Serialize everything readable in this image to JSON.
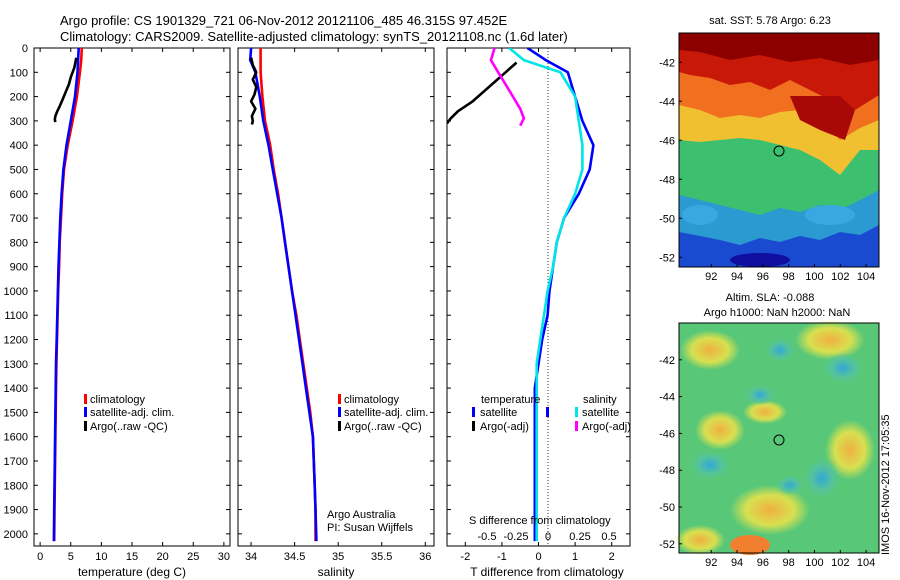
{
  "title_line1": "Argo profile: CS 1901329_721 06-Nov-2012 20121106_485 46.315S 97.452E",
  "title_line2": "Climatology: CARS2009. Satellite-adjusted climatology: synTS_20121108.nc (1.6d later)",
  "timestamp": "IMOS 16-Nov-2012 17:05:35",
  "colors": {
    "climatology": "#ff0000",
    "satellite": "#0000ff",
    "argo": "#000000",
    "sat_sal": "#00e5e5",
    "argo_sal": "#ff00ff"
  },
  "panels": {
    "temperature": {
      "xlabel": "temperature (deg C)"
    },
    "salinity": {
      "xlabel": "salinity",
      "note1": "Argo Australia",
      "note2": "PI: Susan Wijffels"
    },
    "difference": {
      "top_label": "S difference from climatology",
      "xlabel": "T difference from climatology",
      "leg_temp_head": "temperature",
      "leg_sal_head": "salinity",
      "leg_sat": "satellite",
      "leg_argo": "Argo(-adj)",
      "leg_sat2": "satellite",
      "leg_argo2": "Argo(-adj)"
    },
    "sst_map": {
      "title": "sat. SST: 5.78 Argo: 6.23"
    },
    "sla_map": {
      "title1": "Altim. SLA: -0.088",
      "title2": "Argo h1000: NaN h2000: NaN"
    }
  },
  "legend": {
    "climatology": "climatology",
    "satellite": "satellite-adj. clim.",
    "argo": "Argo(..raw -QC)"
  },
  "chart_data": [
    {
      "type": "line",
      "xlabel": "temperature (deg C)",
      "ylabel": "",
      "xlim": [
        -1,
        31
      ],
      "ylim": [
        2050,
        0
      ],
      "xticks": [
        0,
        5,
        10,
        15,
        20,
        25,
        30
      ],
      "yticks": [
        0,
        100,
        200,
        300,
        400,
        500,
        600,
        700,
        800,
        900,
        1000,
        1100,
        1200,
        1300,
        1400,
        1500,
        1600,
        1700,
        1800,
        1900,
        2000
      ],
      "series": [
        {
          "name": "climatology",
          "x": [
            6.8,
            6.7,
            6.5,
            6.0,
            5.3,
            4.5,
            3.9,
            3.6,
            3.4,
            3.2,
            3.1,
            2.95,
            2.85,
            2.75,
            2.65,
            2.6,
            2.55,
            2.5,
            2.45,
            2.4,
            2.35,
            2.3
          ],
          "y": [
            0,
            50,
            100,
            200,
            300,
            400,
            500,
            600,
            700,
            800,
            900,
            1000,
            1100,
            1200,
            1300,
            1400,
            1500,
            1600,
            1700,
            1800,
            1900,
            2030
          ]
        },
        {
          "name": "satellite-adj. clim.",
          "x": [
            6.3,
            6.2,
            6.1,
            5.7,
            5.0,
            4.3,
            3.8,
            3.5,
            3.3,
            3.15,
            3.0,
            2.9,
            2.8,
            2.7,
            2.6,
            2.55,
            2.5,
            2.45,
            2.4,
            2.35,
            2.3,
            2.25
          ],
          "y": [
            0,
            50,
            100,
            200,
            300,
            400,
            500,
            600,
            700,
            800,
            900,
            1000,
            1100,
            1200,
            1300,
            1400,
            1500,
            1600,
            1700,
            1800,
            1900,
            2030
          ]
        },
        {
          "name": "Argo(..raw -QC)",
          "x": [
            5.9,
            5.6,
            5.0,
            4.7,
            4.2,
            3.7,
            3.2,
            2.8,
            2.5,
            2.4,
            2.5
          ],
          "y": [
            40,
            80,
            120,
            150,
            180,
            210,
            240,
            260,
            280,
            295,
            305
          ]
        }
      ]
    },
    {
      "type": "line",
      "xlabel": "salinity",
      "ylabel": "",
      "xlim": [
        33.85,
        36.1
      ],
      "ylim": [
        2050,
        0
      ],
      "xticks": [
        34,
        34.5,
        35,
        35.5,
        36
      ],
      "series": [
        {
          "name": "climatology",
          "x": [
            34.11,
            34.11,
            34.11,
            34.13,
            34.16,
            34.22,
            34.26,
            34.31,
            34.35,
            34.39,
            34.43,
            34.47,
            34.52,
            34.56,
            34.6,
            34.64,
            34.68,
            34.71,
            34.72,
            34.73,
            34.74,
            34.74
          ],
          "y": [
            0,
            50,
            100,
            200,
            300,
            400,
            500,
            600,
            700,
            800,
            900,
            1000,
            1100,
            1200,
            1300,
            1400,
            1500,
            1600,
            1700,
            1800,
            1900,
            2030
          ]
        },
        {
          "name": "satellite-adj. clim.",
          "x": [
            34.0,
            33.99,
            34.05,
            34.1,
            34.14,
            34.2,
            34.25,
            34.3,
            34.35,
            34.39,
            34.43,
            34.47,
            34.51,
            34.55,
            34.59,
            34.63,
            34.67,
            34.71,
            34.72,
            34.73,
            34.74,
            34.75
          ],
          "y": [
            0,
            50,
            100,
            200,
            300,
            400,
            500,
            600,
            700,
            800,
            900,
            1000,
            1100,
            1200,
            1300,
            1400,
            1500,
            1600,
            1700,
            1800,
            1900,
            2030
          ]
        },
        {
          "name": "Argo(..raw -QC)",
          "x": [
            34.0,
            34.02,
            34.06,
            34.02,
            34.06,
            34.04,
            34.0,
            34.05,
            34.01,
            34.02,
            34.01
          ],
          "y": [
            40,
            70,
            100,
            130,
            160,
            190,
            220,
            250,
            280,
            300,
            315
          ]
        }
      ]
    },
    {
      "type": "line",
      "xlabel": "T difference from climatology",
      "ylabel": "",
      "xlim": [
        -2.5,
        2.5
      ],
      "ylim": [
        2050,
        0
      ],
      "xticks": [
        -2,
        -1,
        0,
        1,
        2
      ],
      "top_xticks": [
        "-0.5",
        "-0.25",
        "0",
        "0.25",
        "0.5"
      ],
      "series": [
        {
          "name": "satellite",
          "x": [
            -0.3,
            0.2,
            0.8,
            1.0,
            1.2,
            1.5,
            1.4,
            1.1,
            0.7,
            0.5,
            0.4,
            0.3,
            0.25,
            0.1,
            0.0,
            -0.1,
            -0.1,
            -0.1,
            -0.1,
            -0.1,
            -0.1,
            -0.1
          ],
          "y": [
            0,
            50,
            100,
            200,
            300,
            400,
            500,
            600,
            700,
            800,
            900,
            1000,
            1100,
            1200,
            1300,
            1400,
            1500,
            1600,
            1700,
            1800,
            1900,
            2030
          ]
        },
        {
          "name": "Argo(-adj)",
          "x": [
            -0.6,
            -0.9,
            -1.2,
            -1.5,
            -1.8,
            -2.2,
            -2.4,
            -2.5
          ],
          "y": [
            60,
            100,
            140,
            180,
            220,
            260,
            290,
            310
          ]
        },
        {
          "name": "satellite",
          "x": [
            -0.8,
            -0.4,
            0.6,
            1.0,
            1.1,
            1.2,
            1.2,
            1.0,
            0.7,
            0.5,
            0.4,
            0.25,
            0.15,
            0.05,
            -0.05,
            -0.05,
            -0.05,
            -0.05,
            -0.05,
            -0.05,
            -0.05,
            -0.05
          ],
          "y": [
            0,
            50,
            100,
            200,
            300,
            400,
            500,
            600,
            700,
            800,
            900,
            1000,
            1100,
            1200,
            1300,
            1400,
            1500,
            1600,
            1700,
            1800,
            1900,
            2030
          ]
        },
        {
          "name": "Argo(-adj)",
          "x": [
            -1.2,
            -1.3,
            -1.1,
            -0.9,
            -0.7,
            -0.5,
            -0.4,
            -0.5
          ],
          "y": [
            0,
            50,
            100,
            150,
            200,
            250,
            290,
            320
          ]
        }
      ]
    },
    {
      "type": "heatmap",
      "title": "sat. SST: 5.78 Argo: 6.23",
      "xlim": [
        89.5,
        105
      ],
      "ylim": [
        -52.5,
        -40.5
      ],
      "xticks": [
        92,
        94,
        96,
        98,
        100,
        102,
        104
      ],
      "yticks": [
        -42,
        -44,
        -46,
        -48,
        -50,
        -52
      ],
      "marker": {
        "lon": 97.452,
        "lat": -46.315
      }
    },
    {
      "type": "heatmap",
      "title": "Altim. SLA: -0.088",
      "xlim": [
        89.5,
        105
      ],
      "ylim": [
        -52.5,
        -40
      ],
      "xticks": [
        92,
        94,
        96,
        98,
        100,
        102,
        104
      ],
      "yticks": [
        -42,
        -44,
        -46,
        -48,
        -50,
        -52
      ],
      "marker": {
        "lon": 97.452,
        "lat": -46.315
      }
    }
  ]
}
